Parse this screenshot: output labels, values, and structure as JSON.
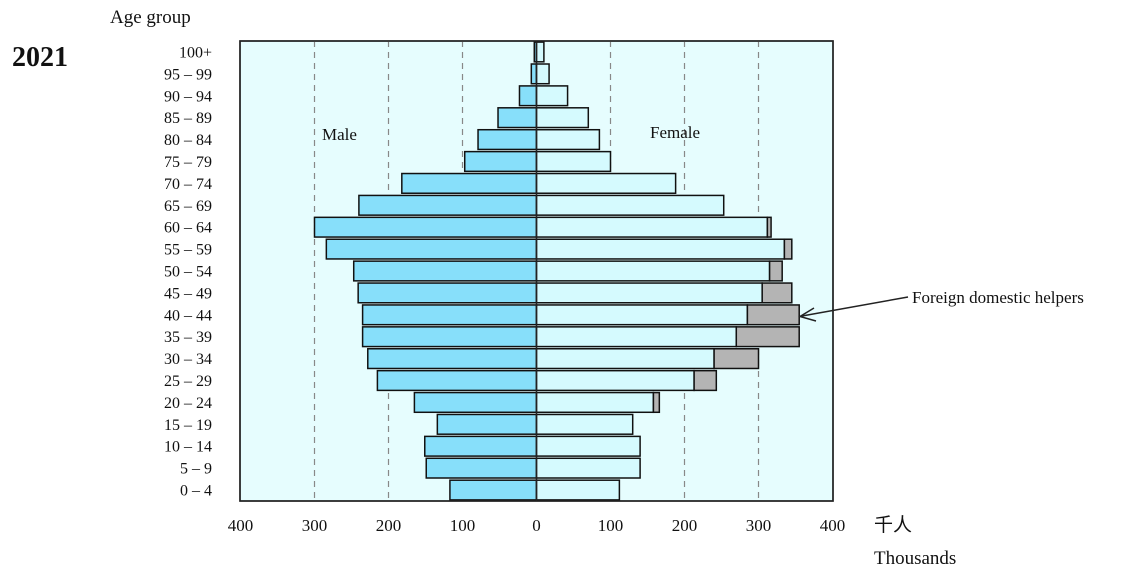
{
  "chart_data": {
    "type": "bar",
    "year": "2021",
    "y_title": "Age group",
    "x_unit_cn": "千人",
    "x_unit_en": "Thousands",
    "left_label": "Male",
    "right_label": "Female",
    "annotation": "Foreign domestic helpers",
    "xlim": [
      -400,
      400
    ],
    "x_ticks": [
      400,
      300,
      200,
      100,
      0,
      100,
      200,
      300,
      400
    ],
    "grid_at": [
      -300,
      -200,
      -100,
      100,
      200,
      300
    ],
    "colors": {
      "male": "#87dffa",
      "female": "#d5fafe",
      "fdh": "#b4b4b4",
      "plot_bg": "#e6fdfe"
    },
    "categories": [
      "0 – 4",
      "5 – 9",
      "10 – 14",
      "15 – 19",
      "20 – 24",
      "25 – 29",
      "30 – 34",
      "35 – 39",
      "40 – 44",
      "45 – 49",
      "50 – 54",
      "55 – 59",
      "60 – 64",
      "65 – 69",
      "70 – 74",
      "75 – 79",
      "80 – 84",
      "85 – 89",
      "90 – 94",
      "95 – 99",
      "100+"
    ],
    "series": [
      {
        "name": "Male",
        "values": [
          117,
          149,
          151,
          134,
          165,
          215,
          228,
          235,
          235,
          241,
          247,
          284,
          300,
          240,
          182,
          97,
          79,
          52,
          23,
          7,
          3
        ]
      },
      {
        "name": "Female",
        "values": [
          112,
          140,
          140,
          130,
          158,
          213,
          240,
          270,
          285,
          305,
          315,
          335,
          312,
          253,
          188,
          100,
          85,
          70,
          42,
          17,
          10
        ]
      },
      {
        "name": "Foreign domestic helpers",
        "values": [
          0,
          0,
          0,
          0,
          8,
          30,
          60,
          85,
          70,
          40,
          17,
          10,
          5,
          0,
          0,
          0,
          0,
          0,
          0,
          0,
          0
        ]
      }
    ]
  }
}
